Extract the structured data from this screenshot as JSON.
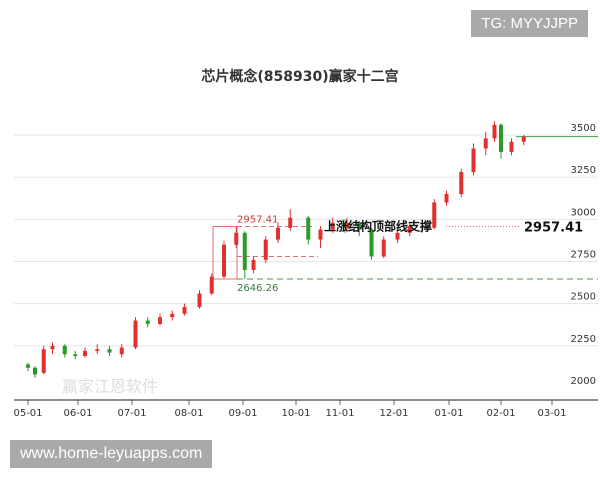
{
  "watermark_tg": "TG: MYYJJPP",
  "watermark_site": "www.home-leyuapps.com",
  "watermark_logo": "赢家江恩软件 www.360gann.com",
  "chart_data": {
    "type": "candlestick",
    "title": "芯片概念(858930)赢家十二宫",
    "xlabel": "",
    "ylabel": "",
    "ylim": [
      2000,
      3600
    ],
    "yticks": [
      2000,
      2250,
      2500,
      2750,
      3000,
      3250,
      3500
    ],
    "xticks": [
      "05-01",
      "06-01",
      "07-01",
      "08-01",
      "09-01",
      "10-01",
      "11-01",
      "12-01",
      "01-01",
      "02-01",
      "03-01"
    ],
    "grid": true,
    "colors": {
      "up": "#e03030",
      "down": "#2a9a2a"
    },
    "candles": [
      [
        "05-01",
        2140,
        2120,
        2150,
        2100
      ],
      [
        "05-05",
        2120,
        2080,
        2130,
        2060
      ],
      [
        "05-10",
        2090,
        2230,
        2250,
        2080
      ],
      [
        "05-15",
        2230,
        2250,
        2270,
        2200
      ],
      [
        "05-22",
        2250,
        2200,
        2260,
        2180
      ],
      [
        "05-28",
        2200,
        2190,
        2220,
        2170
      ],
      [
        "06-05",
        2190,
        2220,
        2240,
        2180
      ],
      [
        "06-12",
        2220,
        2230,
        2260,
        2200
      ],
      [
        "06-19",
        2230,
        2210,
        2250,
        2190
      ],
      [
        "06-26",
        2200,
        2240,
        2260,
        2180
      ],
      [
        "07-03",
        2240,
        2400,
        2420,
        2230
      ],
      [
        "07-10",
        2400,
        2380,
        2420,
        2360
      ],
      [
        "07-17",
        2380,
        2420,
        2440,
        2370
      ],
      [
        "07-24",
        2420,
        2440,
        2460,
        2400
      ],
      [
        "07-31",
        2440,
        2480,
        2500,
        2430
      ],
      [
        "08-07",
        2480,
        2560,
        2580,
        2470
      ],
      [
        "08-14",
        2560,
        2660,
        2680,
        2550
      ],
      [
        "08-21",
        2660,
        2850,
        2870,
        2650
      ],
      [
        "08-28",
        2850,
        2920,
        2957,
        2830
      ],
      [
        "09-02",
        2920,
        2700,
        2930,
        2646
      ],
      [
        "09-07",
        2700,
        2760,
        2780,
        2680
      ],
      [
        "09-14",
        2760,
        2880,
        2900,
        2740
      ],
      [
        "09-21",
        2880,
        2950,
        2980,
        2860
      ],
      [
        "09-28",
        2950,
        3010,
        3060,
        2930
      ],
      [
        "10-08",
        3010,
        2880,
        3020,
        2850
      ],
      [
        "10-15",
        2880,
        2940,
        2960,
        2830
      ],
      [
        "10-22",
        2940,
        2980,
        3010,
        2920
      ],
      [
        "10-29",
        2980,
        2950,
        3000,
        2920
      ],
      [
        "11-05",
        2950,
        2980,
        3010,
        2930
      ],
      [
        "11-12",
        2980,
        2940,
        2990,
        2900
      ],
      [
        "11-19",
        2940,
        2780,
        2950,
        2760
      ],
      [
        "11-26",
        2780,
        2880,
        2900,
        2770
      ],
      [
        "12-03",
        2880,
        2920,
        2950,
        2860
      ],
      [
        "12-10",
        2920,
        2960,
        2980,
        2900
      ],
      [
        "12-17",
        2960,
        2950,
        3000,
        2920
      ],
      [
        "12-24",
        2950,
        3100,
        3120,
        2940
      ],
      [
        "12-31",
        3100,
        3150,
        3170,
        3080
      ],
      [
        "01-08",
        3150,
        3280,
        3300,
        3130
      ],
      [
        "01-15",
        3280,
        3420,
        3450,
        3260
      ],
      [
        "01-22",
        3420,
        3480,
        3520,
        3380
      ],
      [
        "01-27",
        3480,
        3560,
        3580,
        3460
      ],
      [
        "02-01",
        3560,
        3400,
        3570,
        3360
      ],
      [
        "02-07",
        3400,
        3460,
        3480,
        3380
      ],
      [
        "02-14",
        3460,
        3490,
        3500,
        3440
      ]
    ],
    "annotations": {
      "high_label": "2957.41",
      "low_label": "2646.26",
      "support_text": "上涨结构顶部线支撑",
      "support_value": "2957.41",
      "high": 2957.41,
      "low": 2646.26,
      "mid": 2780,
      "last": 3490
    }
  }
}
